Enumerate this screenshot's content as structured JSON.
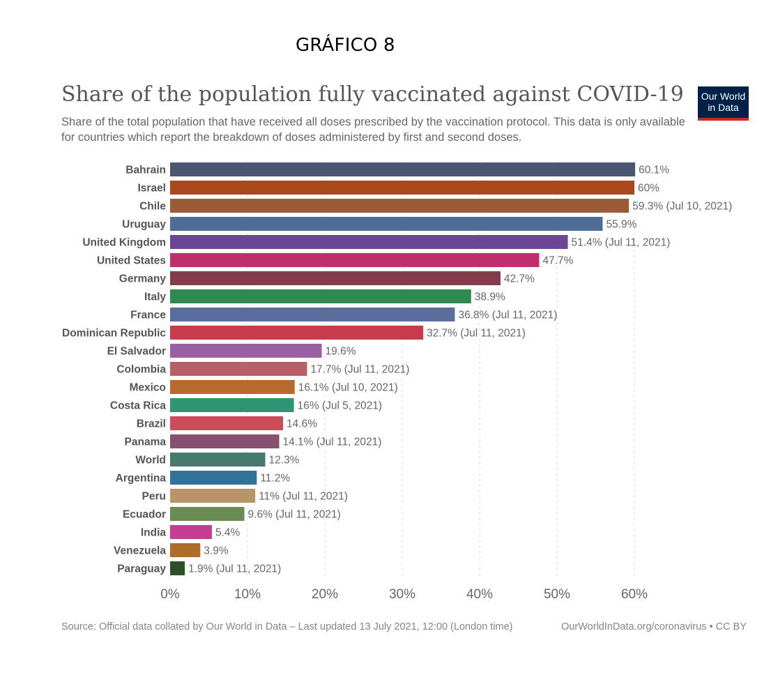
{
  "header_label": "GRÁFICO 8",
  "logo": {
    "line1": "Our World",
    "line2": "in Data"
  },
  "footer": {
    "source": "Source: Official data collated by Our World in Data – Last updated 13 July 2021, 12:00 (London time)",
    "license": "OurWorldInData.org/coronavirus • CC BY"
  },
  "chart_data": {
    "type": "bar",
    "orientation": "horizontal",
    "title": "Share of the population fully vaccinated against COVID-19",
    "subtitle": "Share of the total population that have received all doses prescribed by the vaccination protocol. This data is only available for countries which report the breakdown of doses administered by first and second doses.",
    "xlim": [
      0,
      60
    ],
    "x_ticks": [
      "0%",
      "10%",
      "20%",
      "30%",
      "40%",
      "50%",
      "60%"
    ],
    "x_tick_values": [
      0,
      10,
      20,
      30,
      40,
      50,
      60
    ],
    "grid": "vertical dashed",
    "categories": [
      "Bahrain",
      "Israel",
      "Chile",
      "Uruguay",
      "United Kingdom",
      "United States",
      "Germany",
      "Italy",
      "France",
      "Dominican Republic",
      "El Salvador",
      "Colombia",
      "Mexico",
      "Costa Rica",
      "Brazil",
      "Panama",
      "World",
      "Argentina",
      "Peru",
      "Ecuador",
      "India",
      "Venezuela",
      "Paraguay"
    ],
    "values": [
      60.1,
      60,
      59.3,
      55.9,
      51.4,
      47.7,
      42.7,
      38.9,
      36.8,
      32.7,
      19.6,
      17.7,
      16.1,
      16,
      14.6,
      14.1,
      12.3,
      11.2,
      11,
      9.6,
      5.4,
      3.9,
      1.9
    ],
    "value_labels": [
      "60.1%",
      "60%",
      "59.3% (Jul 10, 2021)",
      "55.9%",
      "51.4% (Jul 11, 2021)",
      "47.7%",
      "42.7%",
      "38.9%",
      "36.8% (Jul 11, 2021)",
      "32.7% (Jul 11, 2021)",
      "19.6%",
      "17.7% (Jul 11, 2021)",
      "16.1% (Jul 10, 2021)",
      "16% (Jul 5, 2021)",
      "14.6%",
      "14.1% (Jul 11, 2021)",
      "12.3%",
      "11.2%",
      "11% (Jul 11, 2021)",
      "9.6% (Jul 11, 2021)",
      "5.4%",
      "3.9%",
      "1.9% (Jul 11, 2021)"
    ],
    "colors": [
      "#4b5670",
      "#a8481e",
      "#995c37",
      "#4d6c96",
      "#6c4696",
      "#be2f6b",
      "#823c4b",
      "#2e8a4e",
      "#5a6e9e",
      "#c93b4b",
      "#9961a3",
      "#ba5f6a",
      "#b66a2f",
      "#2f9473",
      "#cc4d59",
      "#875071",
      "#457a6c",
      "#33739a",
      "#b89468",
      "#6a8c52",
      "#c43d93",
      "#ad6d2d",
      "#2d5028"
    ]
  }
}
